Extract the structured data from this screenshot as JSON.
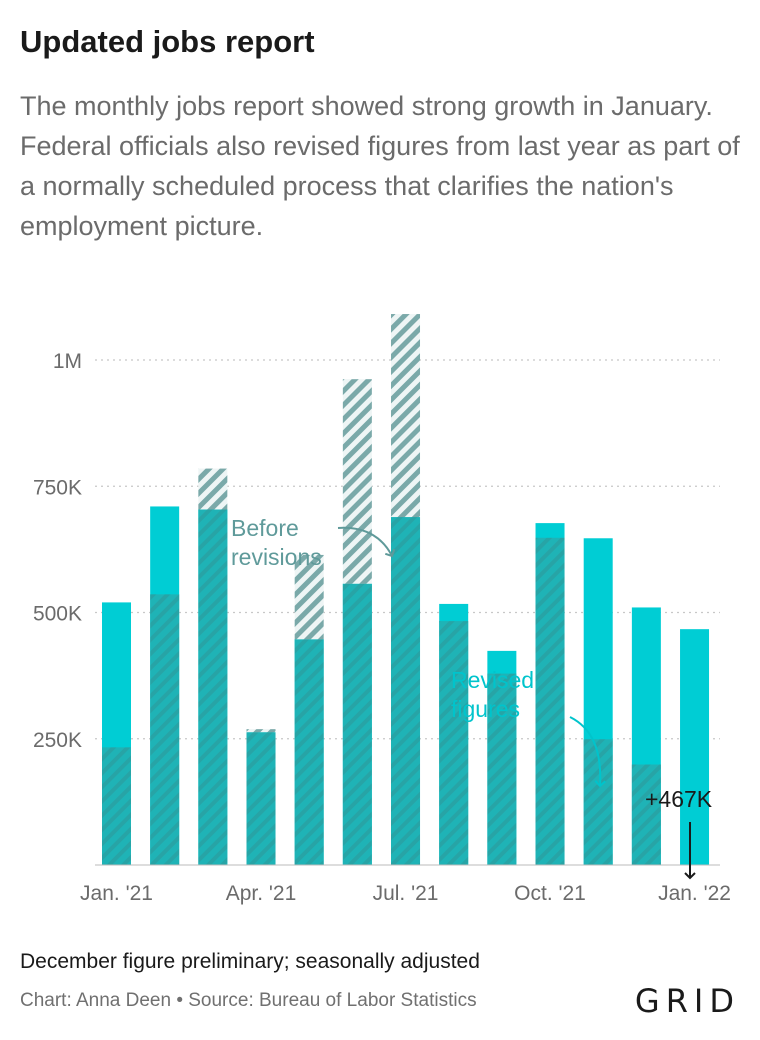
{
  "title": "Updated jobs report",
  "subtitle": "The monthly jobs report showed strong growth in January. Federal officials also revised figures from last year as part of a normally scheduled process that clarifies the nation's employment picture.",
  "note": "December figure preliminary; seasonally adjusted",
  "credit": "Chart: Anna Deen • Source: Bureau of Labor Statistics",
  "logo": "GRID",
  "colors": {
    "revised": "#00cdd4",
    "overlap": "#1fb3b6",
    "before_hatch": "#7aa9a9",
    "grid": "#c8c8c8",
    "text": "#6b6b6b"
  },
  "chart_data": {
    "type": "bar",
    "categories": [
      "Jan. '21",
      "Feb. '21",
      "Mar. '21",
      "Apr. '21",
      "May '21",
      "Jun. '21",
      "Jul. '21",
      "Aug. '21",
      "Sep. '21",
      "Oct. '21",
      "Nov. '21",
      "Dec. '21",
      "Jan. '22"
    ],
    "x_tick_labels": [
      "Jan. '21",
      "Apr. '21",
      "Jul. '21",
      "Oct. '21",
      "Jan. '22"
    ],
    "series": [
      {
        "name": "Before revisions",
        "values": [
          233,
          536,
          785,
          269,
          614,
          962,
          1091,
          483,
          379,
          648,
          249,
          199,
          null
        ]
      },
      {
        "name": "Revised figures",
        "values": [
          520,
          710,
          704,
          263,
          447,
          557,
          689,
          517,
          424,
          677,
          647,
          510,
          467
        ]
      }
    ],
    "y_ticks": [
      {
        "value": 250,
        "label": "250K"
      },
      {
        "value": 500,
        "label": "500K"
      },
      {
        "value": 750,
        "label": "750K"
      },
      {
        "value": 1000,
        "label": "1M"
      }
    ],
    "ylim": [
      0,
      1100
    ],
    "annotations": {
      "before": [
        "Before",
        "revisions"
      ],
      "revised": [
        "Revised",
        "figures"
      ],
      "latest": "+467K"
    }
  }
}
